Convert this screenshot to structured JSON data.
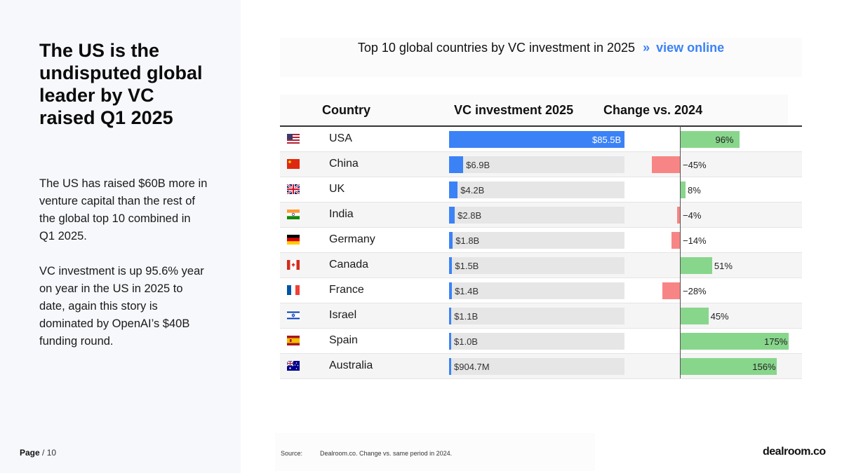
{
  "page": {
    "headline": "The US is the undisputed global leader by VC raised Q1 2025",
    "paragraphs": [
      "The US has raised $60B more in venture capital than the rest of the global top 10 combined in Q1 2025.",
      "VC investment is up 95.6% year on year in the US in 2025 to date, again this story is dominated by OpenAI’s $40B funding round."
    ],
    "page_label": "Page",
    "page_total": "/ 10",
    "source_label": "Source:",
    "source_text": "Dealroom.co. Change vs. same period in  2024.",
    "brand": "dealroom.co"
  },
  "chart_data": {
    "type": "table",
    "title": "Top 10 global countries by VC investment in 2025",
    "title_link_marker": "»",
    "title_link_label": "view online",
    "columns": [
      "Country",
      "VC investment 2025",
      "Change vs. 2024"
    ],
    "rows": [
      {
        "country": "USA",
        "flag": "us-flag",
        "investment": 85.5,
        "investment_label": "$85.5B",
        "change": 96,
        "change_label": "96%"
      },
      {
        "country": "China",
        "flag": "china-flag",
        "investment": 6.9,
        "investment_label": "$6.9B",
        "change": -45,
        "change_label": "−45%"
      },
      {
        "country": "UK",
        "flag": "uk-flag",
        "investment": 4.2,
        "investment_label": "$4.2B",
        "change": 8,
        "change_label": "8%"
      },
      {
        "country": "India",
        "flag": "india-flag",
        "investment": 2.8,
        "investment_label": "$2.8B",
        "change": -4,
        "change_label": "−4%"
      },
      {
        "country": "Germany",
        "flag": "germany-flag",
        "investment": 1.8,
        "investment_label": "$1.8B",
        "change": -14,
        "change_label": "−14%"
      },
      {
        "country": "Canada",
        "flag": "canada-flag",
        "investment": 1.5,
        "investment_label": "$1.5B",
        "change": 51,
        "change_label": "51%"
      },
      {
        "country": "France",
        "flag": "france-flag",
        "investment": 1.4,
        "investment_label": "$1.4B",
        "change": -28,
        "change_label": "−28%"
      },
      {
        "country": "Israel",
        "flag": "israel-flag",
        "investment": 1.1,
        "investment_label": "$1.1B",
        "change": 45,
        "change_label": "45%"
      },
      {
        "country": "Spain",
        "flag": "spain-flag",
        "investment": 1.0,
        "investment_label": "$1.0B",
        "change": 175,
        "change_label": "175%"
      },
      {
        "country": "Australia",
        "flag": "australia-flag",
        "investment": 0.9047,
        "investment_label": "$904.7M",
        "change": 156,
        "change_label": "156%"
      }
    ],
    "investment_max": 85.5,
    "change_max": 175,
    "colors": {
      "investment_bar": "#3b82f6",
      "investment_track": "#e6e6e6",
      "change_positive": "#88d68c",
      "change_negative": "#f88585"
    }
  }
}
